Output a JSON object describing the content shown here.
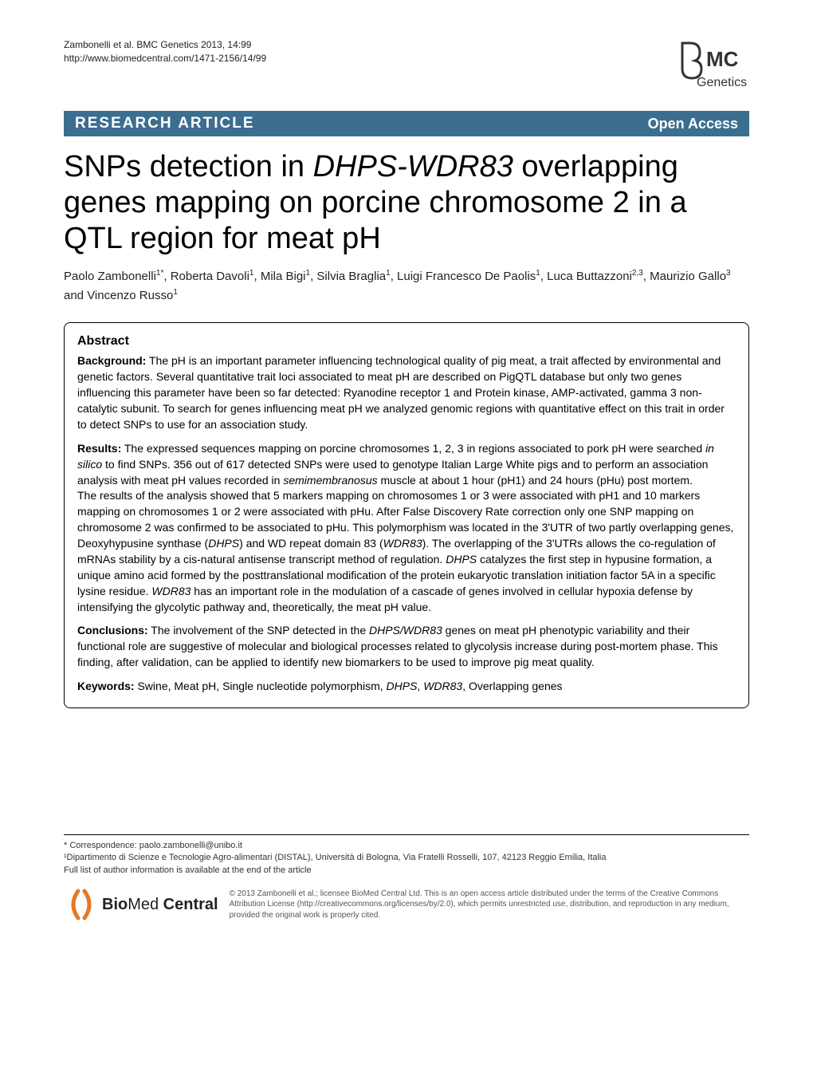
{
  "citation": {
    "line1": "Zambonelli et al. BMC Genetics 2013, 14:99",
    "line2": "http://www.biomedcentral.com/1471-2156/14/99"
  },
  "logo": {
    "top": "BMC",
    "bottom": "Genetics"
  },
  "banner": {
    "left": "RESEARCH ARTICLE",
    "right": "Open Access"
  },
  "title": {
    "pre": "SNPs detection in ",
    "italic": "DHPS-WDR83",
    "post": " overlapping genes mapping on porcine chromosome 2 in a QTL region for meat pH"
  },
  "authors_html": "Paolo Zambonelli<sup>1*</sup>, Roberta Davoli<sup>1</sup>, Mila Bigi<sup>1</sup>, Silvia Braglia<sup>1</sup>, Luigi Francesco De Paolis<sup>1</sup>, Luca Buttazzoni<sup>2,3</sup>, Maurizio Gallo<sup>3</sup> and Vincenzo Russo<sup>1</sup>",
  "abstract": {
    "heading": "Abstract",
    "background": {
      "label": "Background:",
      "text": " The pH is an important parameter influencing technological quality of pig meat, a trait affected by environmental and genetic factors. Several quantitative trait loci associated to meat pH are described on PigQTL database but only two genes influencing this parameter have been so far detected: Ryanodine receptor 1 and Protein kinase, AMP-activated, gamma 3 non-catalytic subunit. To search for genes influencing meat pH we analyzed genomic regions with quantitative effect on this trait in order to detect SNPs to use for an association study."
    },
    "results": {
      "label": "Results:",
      "text_html": " The expressed sequences mapping on porcine chromosomes 1, 2, 3 in regions associated to pork pH were searched <span class=\"ital\">in silico</span> to find SNPs. 356 out of 617 detected SNPs were used to genotype Italian Large White pigs and to perform an association analysis with meat pH values recorded in <span class=\"ital\">semimembranosus</span> muscle at about 1 hour (pH1) and 24 hours (pHu) post mortem.<br>The results of the analysis showed that 5 markers mapping on chromosomes 1 or 3 were associated with pH1 and 10 markers mapping on chromosomes 1 or 2 were associated with pHu. After False Discovery Rate correction only one SNP mapping on chromosome 2 was confirmed to be associated to pHu. This polymorphism was located in the 3'UTR of two partly overlapping genes, Deoxyhypusine synthase (<span class=\"ital\">DHPS</span>) and WD repeat domain 83 (<span class=\"ital\">WDR83</span>). The overlapping of the 3'UTRs allows the co-regulation of mRNAs stability by a cis-natural antisense transcript method of regulation. <span class=\"ital\">DHPS</span> catalyzes the first step in hypusine formation, a unique amino acid formed by the posttranslational modification of the protein eukaryotic translation initiation factor 5A in a specific lysine residue. <span class=\"ital\">WDR83</span> has an important role in the modulation of a cascade of genes involved in cellular hypoxia defense by intensifying the glycolytic pathway and, theoretically, the meat pH value."
    },
    "conclusions": {
      "label": "Conclusions:",
      "text_html": " The involvement of the SNP detected in the <span class=\"ital\">DHPS/WDR83</span> genes on meat pH phenotypic variability and their functional role are suggestive of molecular and biological processes related to glycolysis increase during post-mortem phase. This finding, after validation, can be applied to identify new biomarkers to be used to improve pig meat quality."
    },
    "keywords": {
      "label": "Keywords:",
      "text_html": " Swine, Meat pH, Single nucleotide polymorphism, <span class=\"ital\">DHPS</span>, <span class=\"ital\">WDR83</span>, Overlapping genes"
    }
  },
  "footer": {
    "correspondence": "* Correspondence: paolo.zambonelli@unibo.it",
    "affiliation1": "¹Dipartimento di Scienze e Tecnologie Agro-alimentari (DISTAL), Università di Bologna, Via Fratelli Rosselli, 107, 42123 Reggio Emilia, Italia",
    "full_list": "Full list of author information is available at the end of the article"
  },
  "bmc": {
    "logo_bio": "Bio",
    "logo_med": "Med",
    "logo_central": " Central",
    "license": "© 2013 Zambonelli et al.; licensee BioMed Central Ltd. This is an open access article distributed under the terms of the Creative Commons Attribution License (http://creativecommons.org/licenses/by/2.0), which permits unrestricted use, distribution, and reproduction in any medium, provided the original work is properly cited."
  },
  "colors": {
    "banner_bg": "#3b6e8f",
    "banner_fg": "#ffffff",
    "text": "#000000",
    "footer_text": "#555555",
    "accent_orange": "#e87722"
  }
}
